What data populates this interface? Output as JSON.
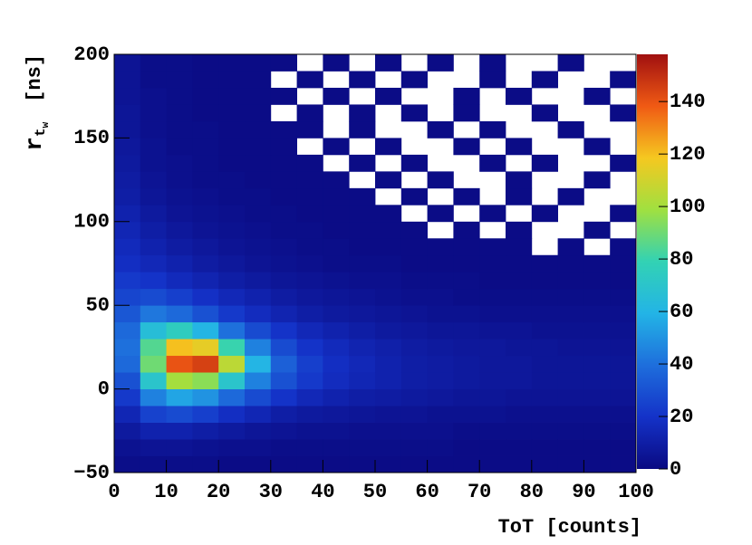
{
  "chart_data": {
    "type": "heatmap",
    "xlabel": "ToT [counts]",
    "ylabel": {
      "base": "r",
      "sub": "t",
      "subsub": "w",
      "unit": "[ns]"
    },
    "xlim": [
      0,
      100
    ],
    "ylim": [
      -50,
      200
    ],
    "zlim": [
      0,
      158
    ],
    "xticks": [
      0,
      10,
      20,
      30,
      40,
      50,
      60,
      70,
      80,
      90,
      100
    ],
    "yticks": [
      {
        "value": -50,
        "label": "−50"
      },
      0,
      50,
      100,
      150,
      200
    ],
    "zticks": [
      0,
      20,
      40,
      60,
      80,
      100,
      120,
      140
    ],
    "xbins": [
      0,
      5,
      10,
      15,
      20,
      25,
      30,
      35,
      40,
      45,
      50,
      55,
      60,
      65,
      70,
      75,
      80,
      85,
      90,
      95,
      100
    ],
    "ybins": [
      -50,
      -40,
      -30,
      -20,
      -10,
      0,
      10,
      20,
      30,
      40,
      50,
      60,
      70,
      80,
      90,
      100,
      110,
      120,
      130,
      140,
      150,
      160,
      170,
      180,
      190,
      200
    ],
    "colormap": [
      "#0a0a82",
      "#1432c8",
      "#1e6edc",
      "#23b4e6",
      "#32d2b4",
      "#a0e040",
      "#f5c820",
      "#f05a14",
      "#a01010"
    ],
    "values": [
      [
        2,
        2,
        2,
        2,
        1,
        1,
        1,
        1,
        1,
        1,
        1,
        1,
        1,
        1,
        1,
        1,
        1,
        1,
        1,
        1
      ],
      [
        4,
        5,
        5,
        4,
        3,
        3,
        2,
        2,
        2,
        2,
        2,
        2,
        2,
        1,
        1,
        1,
        1,
        1,
        1,
        1
      ],
      [
        8,
        12,
        12,
        10,
        8,
        6,
        5,
        4,
        4,
        3,
        3,
        3,
        3,
        2,
        2,
        2,
        2,
        2,
        2,
        2
      ],
      [
        14,
        25,
        28,
        24,
        18,
        14,
        10,
        8,
        7,
        6,
        5,
        5,
        4,
        4,
        4,
        3,
        3,
        3,
        3,
        3
      ],
      [
        22,
        45,
        55,
        50,
        38,
        28,
        20,
        15,
        12,
        10,
        9,
        8,
        7,
        6,
        6,
        5,
        5,
        5,
        5,
        5
      ],
      [
        30,
        70,
        100,
        95,
        70,
        45,
        30,
        22,
        17,
        14,
        12,
        10,
        9,
        8,
        7,
        7,
        6,
        6,
        6,
        6
      ],
      [
        38,
        90,
        140,
        145,
        105,
        60,
        35,
        24,
        18,
        15,
        12,
        10,
        9,
        8,
        7,
        7,
        6,
        6,
        6,
        6
      ],
      [
        40,
        85,
        120,
        115,
        80,
        45,
        28,
        20,
        16,
        13,
        11,
        9,
        8,
        7,
        7,
        6,
        6,
        5,
        5,
        5
      ],
      [
        38,
        65,
        75,
        60,
        40,
        28,
        20,
        15,
        12,
        10,
        8,
        7,
        6,
        6,
        5,
        5,
        4,
        4,
        4,
        4
      ],
      [
        32,
        42,
        38,
        30,
        22,
        17,
        13,
        10,
        8,
        7,
        6,
        5,
        4,
        4,
        3,
        3,
        3,
        3,
        3,
        3
      ],
      [
        26,
        28,
        24,
        19,
        15,
        12,
        9,
        7,
        6,
        5,
        4,
        3,
        3,
        2,
        2,
        2,
        2,
        2,
        2,
        2
      ],
      [
        22,
        20,
        16,
        13,
        10,
        8,
        6,
        5,
        4,
        3,
        3,
        2,
        2,
        2,
        1,
        1,
        1,
        1,
        1,
        1
      ],
      [
        18,
        15,
        12,
        9,
        7,
        5,
        4,
        3,
        2,
        2,
        2,
        1,
        1,
        1,
        1,
        1,
        1,
        1,
        1,
        1
      ],
      [
        16,
        12,
        9,
        7,
        5,
        4,
        3,
        2,
        2,
        1,
        1,
        1,
        1,
        1,
        1,
        1,
        0,
        1,
        0,
        1
      ],
      [
        14,
        10,
        7,
        5,
        4,
        3,
        2,
        2,
        1,
        1,
        1,
        1,
        0,
        1,
        0,
        1,
        0,
        0,
        1,
        0
      ],
      [
        12,
        8,
        5,
        4,
        3,
        2,
        2,
        1,
        1,
        1,
        1,
        0,
        1,
        0,
        1,
        0,
        1,
        0,
        0,
        1
      ],
      [
        10,
        6,
        4,
        3,
        2,
        2,
        1,
        1,
        1,
        1,
        0,
        1,
        0,
        1,
        0,
        1,
        0,
        1,
        0,
        0
      ],
      [
        9,
        5,
        3,
        2,
        2,
        1,
        1,
        1,
        1,
        0,
        1,
        0,
        1,
        0,
        0,
        1,
        0,
        0,
        1,
        0
      ],
      [
        8,
        4,
        3,
        2,
        1,
        1,
        1,
        1,
        0,
        1,
        0,
        1,
        0,
        0,
        1,
        0,
        1,
        0,
        0,
        1
      ],
      [
        7,
        4,
        2,
        2,
        1,
        1,
        1,
        0,
        1,
        0,
        1,
        0,
        0,
        1,
        0,
        1,
        0,
        0,
        1,
        0
      ],
      [
        6,
        3,
        2,
        2,
        1,
        1,
        1,
        1,
        0,
        1,
        0,
        0,
        1,
        0,
        1,
        0,
        0,
        1,
        0,
        0
      ],
      [
        6,
        3,
        2,
        1,
        1,
        1,
        0,
        1,
        0,
        1,
        0,
        1,
        0,
        1,
        0,
        0,
        1,
        0,
        0,
        1
      ],
      [
        5,
        3,
        2,
        1,
        1,
        1,
        1,
        0,
        1,
        0,
        1,
        0,
        0,
        1,
        0,
        1,
        0,
        0,
        1,
        0
      ],
      [
        5,
        2,
        2,
        1,
        1,
        1,
        0,
        1,
        0,
        1,
        0,
        1,
        0,
        0,
        1,
        0,
        1,
        0,
        0,
        1
      ],
      [
        5,
        2,
        2,
        1,
        1,
        1,
        1,
        0,
        1,
        0,
        1,
        0,
        1,
        0,
        1,
        0,
        0,
        1,
        0,
        0
      ]
    ]
  }
}
